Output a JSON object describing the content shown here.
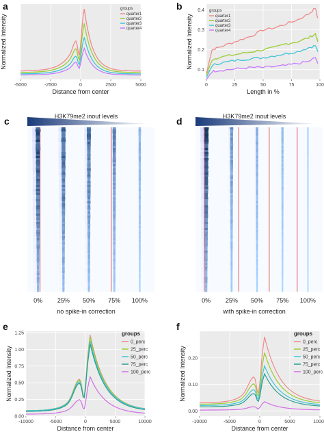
{
  "chart_data": [
    {
      "panel": "a",
      "type": "line",
      "xlabel": "Distance from center",
      "ylabel": "Normalized Intensity",
      "xlim": [
        -5000,
        5000
      ],
      "x_ticks": [
        "-5000",
        "-2500",
        "0",
        "2500",
        "5000"
      ],
      "legend_title": "groups",
      "legend_position": "top-right",
      "grid": true,
      "series": [
        {
          "name": "quarter1",
          "color": "#f08a8a",
          "peak_height": 1.0
        },
        {
          "name": "quarter2",
          "color": "#9acd32",
          "peak_height": 0.79
        },
        {
          "name": "quarter3",
          "color": "#3fc5d5",
          "peak_height": 0.59
        },
        {
          "name": "quarter4",
          "color": "#c77cff",
          "peak_height": 0.43
        }
      ]
    },
    {
      "panel": "b",
      "type": "line",
      "xlabel": "Length in %",
      "ylabel": "Normalized Intensity",
      "xlim": [
        0,
        100
      ],
      "ylim": [
        0.05,
        0.43
      ],
      "x_ticks": [
        "0",
        "25",
        "50",
        "75",
        "100"
      ],
      "y_ticks": [
        "0.1",
        "0.2",
        "0.3",
        "0.4"
      ],
      "legend_title": "groups",
      "legend_position": "top-left",
      "grid": true,
      "x": [
        0,
        5,
        10,
        20,
        30,
        40,
        50,
        60,
        70,
        80,
        90,
        96,
        98
      ],
      "series": [
        {
          "name": "quarter1",
          "color": "#f08a8a",
          "values": [
            0.08,
            0.2,
            0.21,
            0.23,
            0.25,
            0.27,
            0.3,
            0.31,
            0.33,
            0.35,
            0.38,
            0.41,
            0.36
          ]
        },
        {
          "name": "quarter2",
          "color": "#9acd32",
          "values": [
            0.07,
            0.15,
            0.16,
            0.17,
            0.18,
            0.19,
            0.2,
            0.21,
            0.23,
            0.24,
            0.26,
            0.28,
            0.24
          ]
        },
        {
          "name": "quarter3",
          "color": "#3fc5d5",
          "values": [
            0.06,
            0.12,
            0.13,
            0.14,
            0.15,
            0.155,
            0.16,
            0.17,
            0.18,
            0.19,
            0.21,
            0.22,
            0.19
          ]
        },
        {
          "name": "quarter4",
          "color": "#c77cff",
          "values": [
            0.05,
            0.09,
            0.095,
            0.1,
            0.105,
            0.11,
            0.11,
            0.115,
            0.12,
            0.13,
            0.14,
            0.16,
            0.13
          ]
        }
      ]
    },
    {
      "panel": "c",
      "type": "heatmap",
      "title": "H3K79me2 inout levels",
      "caption": "no spike-in correction",
      "x_ticks": [
        "0%",
        "25%",
        "50%",
        "75%",
        "100%"
      ],
      "column_strength": [
        1.0,
        0.85,
        0.75,
        0.6,
        0.3
      ]
    },
    {
      "panel": "d",
      "type": "heatmap",
      "title": "H3K79me2 inout levels",
      "caption": "with spike-in correction",
      "x_ticks": [
        "0%",
        "25%",
        "50%",
        "75%",
        "100%"
      ],
      "column_strength": [
        1.0,
        0.5,
        0.35,
        0.25,
        0.08
      ]
    },
    {
      "panel": "e",
      "type": "line",
      "xlabel": "Distance from center",
      "ylabel": "Normalized Intensity",
      "xlim": [
        -10000,
        10000
      ],
      "ylim": [
        0,
        1.27
      ],
      "x_ticks": [
        "-10000",
        "-5000",
        "0",
        "5000",
        "10000"
      ],
      "y_ticks": [
        "0.00",
        "0.25",
        "0.50",
        "0.75",
        "1.00",
        "1.25"
      ],
      "legend_title": "groups",
      "legend_position": "right",
      "grid": true,
      "series": [
        {
          "name": "0_perc",
          "color": "#f08a8a",
          "peak": 1.22,
          "side": 0.45,
          "base": 0.08
        },
        {
          "name": "25_perc",
          "color": "#9acd32",
          "peak": 1.19,
          "side": 0.44,
          "base": 0.08
        },
        {
          "name": "50_perc",
          "color": "#3fc5d5",
          "peak": 1.13,
          "side": 0.42,
          "base": 0.08
        },
        {
          "name": "75_perc",
          "color": "#2a9d8f",
          "peak": 1.08,
          "side": 0.41,
          "base": 0.07
        },
        {
          "name": "100_perc",
          "color": "#d16ee6",
          "peak": 0.59,
          "side": 0.16,
          "base": 0.03
        }
      ]
    },
    {
      "panel": "f",
      "type": "line",
      "xlabel": "Distance from center",
      "ylabel": "Normalized Intensity",
      "xlim": [
        -10000,
        10000
      ],
      "ylim": [
        -0.02,
        0.3
      ],
      "x_ticks": [
        "-10000",
        "-5000",
        "0",
        "5000",
        "10000"
      ],
      "y_ticks": [
        "0.00",
        "0.10",
        "0.20"
      ],
      "legend_title": "groups",
      "legend_position": "right",
      "grid": true,
      "series": [
        {
          "name": "0_perc",
          "color": "#f08a8a",
          "peak": 0.28,
          "side": 0.09,
          "base": 0.03
        },
        {
          "name": "25_perc",
          "color": "#9acd32",
          "peak": 0.22,
          "side": 0.075,
          "base": 0.025
        },
        {
          "name": "50_perc",
          "color": "#3fc5d5",
          "peak": 0.17,
          "side": 0.06,
          "base": 0.02
        },
        {
          "name": "75_perc",
          "color": "#2a9d8f",
          "peak": 0.14,
          "side": 0.05,
          "base": 0.015
        },
        {
          "name": "100_perc",
          "color": "#d16ee6",
          "peak": 0.035,
          "side": 0.012,
          "base": 0.003
        }
      ]
    }
  ],
  "panels": {
    "a_label": "a",
    "b_label": "b",
    "c_label": "c",
    "d_label": "d",
    "e_label": "e",
    "f_label": "f"
  }
}
